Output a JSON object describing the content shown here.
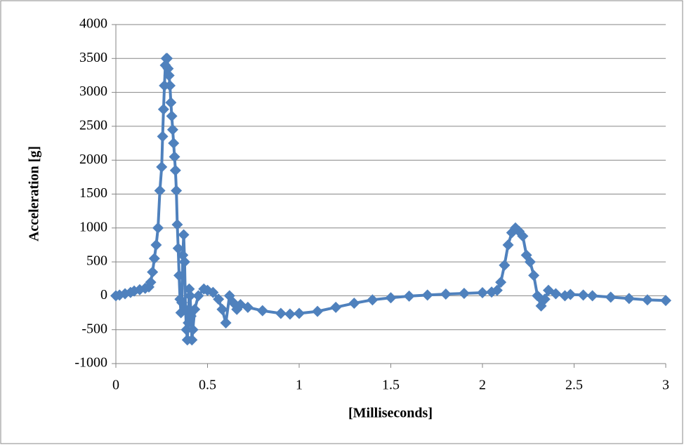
{
  "chart_data": {
    "type": "line",
    "x_label": "[Milliseconds]",
    "y_label": "Acceleration [g]",
    "x": [
      0,
      0.02,
      0.05,
      0.08,
      0.1,
      0.13,
      0.16,
      0.18,
      0.19,
      0.2,
      0.21,
      0.22,
      0.23,
      0.24,
      0.25,
      0.255,
      0.26,
      0.265,
      0.27,
      0.275,
      0.28,
      0.285,
      0.29,
      0.295,
      0.3,
      0.305,
      0.31,
      0.315,
      0.32,
      0.325,
      0.33,
      0.335,
      0.34,
      0.345,
      0.35,
      0.355,
      0.36,
      0.365,
      0.37,
      0.375,
      0.38,
      0.385,
      0.39,
      0.395,
      0.4,
      0.405,
      0.41,
      0.415,
      0.42,
      0.43,
      0.45,
      0.48,
      0.5,
      0.53,
      0.56,
      0.58,
      0.6,
      0.62,
      0.64,
      0.66,
      0.68,
      0.72,
      0.8,
      0.9,
      0.95,
      1.0,
      1.1,
      1.2,
      1.3,
      1.4,
      1.5,
      1.6,
      1.7,
      1.8,
      1.9,
      2.0,
      2.05,
      2.08,
      2.1,
      2.12,
      2.14,
      2.16,
      2.18,
      2.2,
      2.22,
      2.24,
      2.26,
      2.28,
      2.3,
      2.32,
      2.34,
      2.36,
      2.4,
      2.45,
      2.48,
      2.55,
      2.6,
      2.7,
      2.8,
      2.9,
      3.0
    ],
    "values": [
      0,
      10,
      30,
      50,
      70,
      90,
      110,
      130,
      200,
      350,
      550,
      750,
      1000,
      1550,
      1900,
      2350,
      2750,
      3100,
      3400,
      3500,
      3500,
      3350,
      3250,
      3100,
      2850,
      2650,
      2450,
      2250,
      2050,
      1850,
      1550,
      1050,
      700,
      300,
      -50,
      -250,
      -100,
      600,
      900,
      500,
      -200,
      -500,
      -650,
      -400,
      100,
      0,
      -300,
      -650,
      -500,
      -200,
      0,
      100,
      80,
      50,
      -50,
      -200,
      -400,
      0,
      -100,
      -200,
      -130,
      -170,
      -220,
      -260,
      -270,
      -260,
      -230,
      -170,
      -110,
      -60,
      -30,
      -5,
      10,
      25,
      35,
      45,
      55,
      80,
      200,
      450,
      750,
      930,
      1000,
      950,
      880,
      600,
      500,
      300,
      0,
      -150,
      -50,
      80,
      30,
      0,
      20,
      10,
      0,
      -20,
      -40,
      -60,
      -70
    ],
    "color": "#4f81bd",
    "xlim": [
      0,
      3
    ],
    "xticks": [
      0,
      0.5,
      1,
      1.5,
      2,
      2.5,
      3
    ],
    "ylim": [
      -1000,
      4000
    ],
    "yticks": [
      -1000,
      -500,
      0,
      500,
      1000,
      1500,
      2000,
      2500,
      3000,
      3500,
      4000
    ],
    "grid": true
  }
}
